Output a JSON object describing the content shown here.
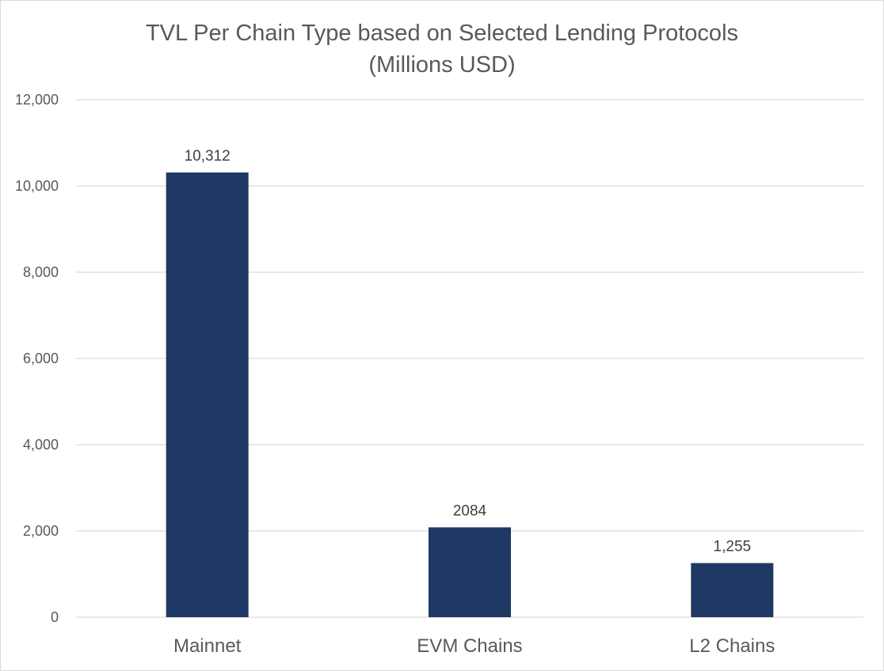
{
  "chart": {
    "title_line1": "TVL Per Chain Type based on Selected Lending Protocols",
    "title_line2": "(Millions USD)",
    "bar_color": "#203864",
    "grid_color": "#d9d9d9"
  },
  "chart_data": {
    "type": "bar",
    "title": "TVL Per Chain Type based on Selected Lending Protocols (Millions USD)",
    "categories": [
      "Mainnet",
      "EVM Chains",
      "L2 Chains"
    ],
    "values": [
      10312,
      2084,
      1255
    ],
    "data_labels": [
      "10,312",
      "2084",
      "1,255"
    ],
    "ylim": [
      0,
      12000
    ],
    "yticks": [
      0,
      2000,
      4000,
      6000,
      8000,
      10000,
      12000
    ],
    "ytick_labels": [
      "0",
      "2,000",
      "4,000",
      "6,000",
      "8,000",
      "10,000",
      "12,000"
    ],
    "grid": true,
    "legend": "none",
    "xlabel": "",
    "ylabel": ""
  }
}
